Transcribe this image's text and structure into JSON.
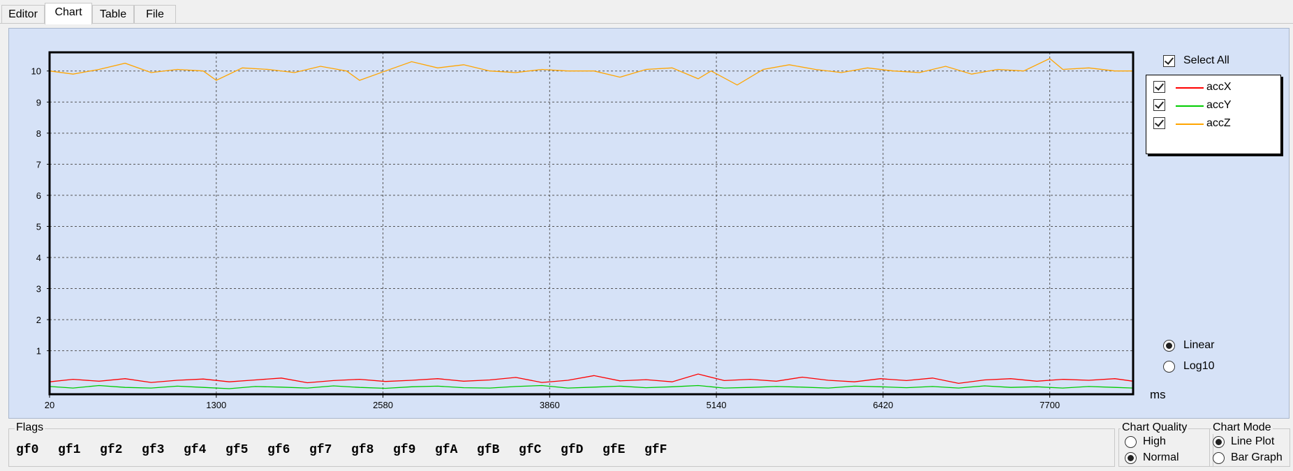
{
  "tabs": [
    "Editor",
    "Chart",
    "Table",
    "File"
  ],
  "active_tab": "Chart",
  "select_all_label": "Select All",
  "legend": [
    {
      "name": "accX",
      "color": "#ff0000"
    },
    {
      "name": "accY",
      "color": "#00cc00"
    },
    {
      "name": "accZ",
      "color": "#ffa500"
    }
  ],
  "scale": {
    "options": [
      "Linear",
      "Log10"
    ],
    "selected": "Linear"
  },
  "flags": {
    "title": "Flags",
    "items": [
      "gf0",
      "gf1",
      "gf2",
      "gf3",
      "gf4",
      "gf5",
      "gf6",
      "gf7",
      "gf8",
      "gf9",
      "gfA",
      "gfB",
      "gfC",
      "gfD",
      "gfE",
      "gfF"
    ]
  },
  "chart_quality": {
    "title": "Chart Quality",
    "options": [
      "High",
      "Normal"
    ],
    "selected": "Normal"
  },
  "chart_mode": {
    "title": "Chart Mode",
    "options": [
      "Line Plot",
      "Bar Graph"
    ],
    "selected": "Line Plot"
  },
  "chart_data": {
    "type": "line",
    "xlabel": "ms",
    "ylabel": "",
    "xlim": [
      20,
      8340
    ],
    "ylim": [
      -0.4,
      10.6
    ],
    "x_ticks": [
      20,
      1300,
      2580,
      3860,
      5140,
      6420,
      7700
    ],
    "y_ticks": [
      1,
      2,
      3,
      4,
      5,
      6,
      7,
      8,
      9,
      10
    ],
    "grid": true,
    "legend_position": "top-right",
    "series": [
      {
        "name": "accX",
        "color": "#ff0000",
        "x": [
          20,
          200,
          400,
          600,
          800,
          1000,
          1200,
          1400,
          1600,
          1800,
          2000,
          2200,
          2400,
          2600,
          2800,
          3000,
          3200,
          3400,
          3600,
          3800,
          4000,
          4200,
          4400,
          4600,
          4800,
          5000,
          5200,
          5400,
          5600,
          5800,
          6000,
          6200,
          6400,
          6600,
          6800,
          7000,
          7200,
          7400,
          7600,
          7800,
          8000,
          8200,
          8340
        ],
        "y": [
          0.0,
          0.08,
          0.02,
          0.1,
          -0.02,
          0.05,
          0.09,
          0.0,
          0.06,
          0.12,
          -0.03,
          0.04,
          0.08,
          0.01,
          0.05,
          0.1,
          0.02,
          0.06,
          0.14,
          -0.02,
          0.05,
          0.2,
          0.03,
          0.07,
          0.0,
          0.25,
          0.04,
          0.08,
          0.02,
          0.15,
          0.05,
          0.0,
          0.1,
          0.04,
          0.12,
          -0.05,
          0.06,
          0.1,
          0.02,
          0.08,
          0.05,
          0.1,
          0.02
        ]
      },
      {
        "name": "accY",
        "color": "#00cc00",
        "x": [
          20,
          200,
          400,
          600,
          800,
          1000,
          1200,
          1400,
          1600,
          1800,
          2000,
          2200,
          2400,
          2600,
          2800,
          3000,
          3200,
          3400,
          3600,
          3800,
          4000,
          4200,
          4400,
          4600,
          4800,
          5000,
          5200,
          5400,
          5600,
          5800,
          6000,
          6200,
          6400,
          6600,
          6800,
          7000,
          7200,
          7400,
          7600,
          7800,
          8000,
          8200,
          8340
        ],
        "y": [
          -0.15,
          -0.2,
          -0.12,
          -0.18,
          -0.2,
          -0.14,
          -0.18,
          -0.22,
          -0.15,
          -0.17,
          -0.2,
          -0.13,
          -0.18,
          -0.21,
          -0.16,
          -0.14,
          -0.19,
          -0.2,
          -0.15,
          -0.12,
          -0.2,
          -0.17,
          -0.14,
          -0.19,
          -0.16,
          -0.12,
          -0.2,
          -0.18,
          -0.15,
          -0.17,
          -0.2,
          -0.14,
          -0.16,
          -0.19,
          -0.15,
          -0.2,
          -0.13,
          -0.18,
          -0.16,
          -0.2,
          -0.15,
          -0.18,
          -0.2
        ]
      },
      {
        "name": "accZ",
        "color": "#ffa500",
        "x": [
          20,
          200,
          400,
          600,
          800,
          1000,
          1200,
          1300,
          1500,
          1700,
          1900,
          2100,
          2300,
          2400,
          2600,
          2800,
          3000,
          3200,
          3400,
          3600,
          3800,
          4000,
          4200,
          4400,
          4600,
          4800,
          5000,
          5100,
          5300,
          5500,
          5700,
          5900,
          6100,
          6300,
          6500,
          6700,
          6900,
          7100,
          7300,
          7500,
          7700,
          7800,
          8000,
          8200,
          8340
        ],
        "y": [
          10.0,
          9.9,
          10.05,
          10.25,
          9.95,
          10.05,
          10.0,
          9.7,
          10.1,
          10.05,
          9.95,
          10.15,
          10.0,
          9.7,
          10.0,
          10.3,
          10.1,
          10.2,
          10.0,
          9.95,
          10.05,
          10.0,
          10.0,
          9.8,
          10.05,
          10.1,
          9.75,
          10.0,
          9.55,
          10.05,
          10.2,
          10.05,
          9.95,
          10.1,
          10.0,
          9.95,
          10.15,
          9.9,
          10.05,
          10.0,
          10.4,
          10.05,
          10.1,
          10.0,
          10.0
        ]
      }
    ]
  }
}
